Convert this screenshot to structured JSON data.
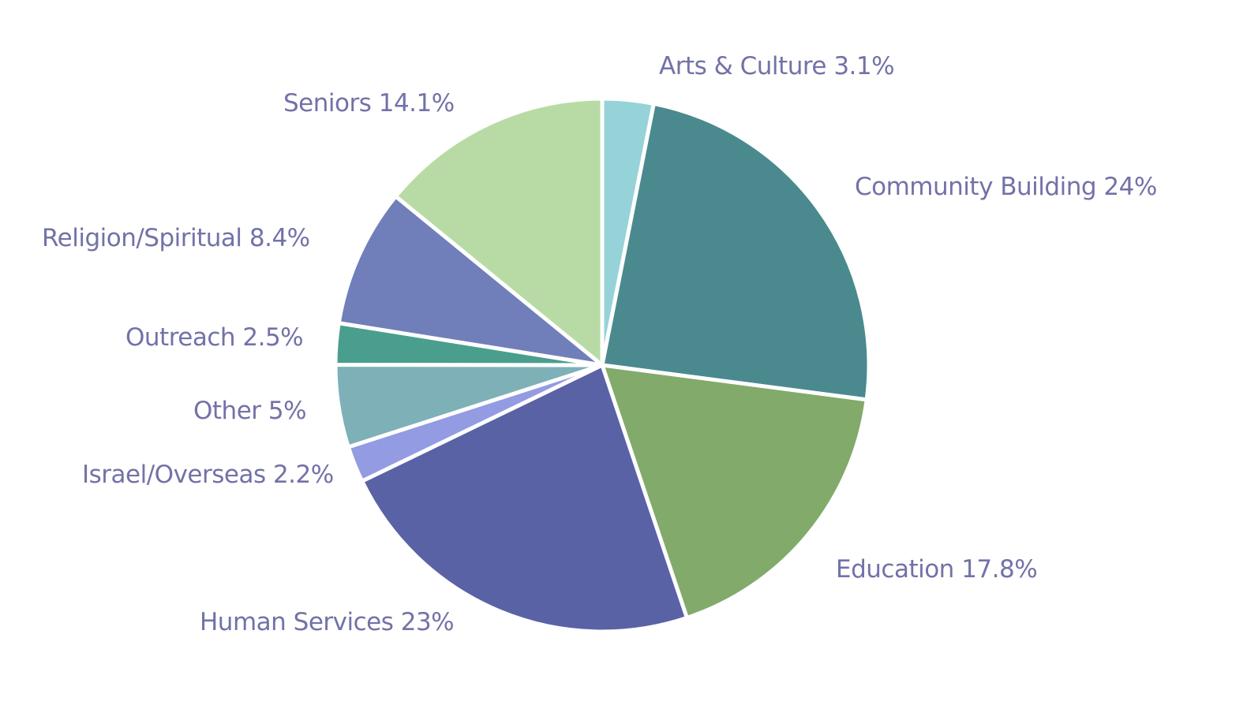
{
  "chart_data": {
    "type": "pie",
    "start": "12 o'clock",
    "direction": "clockwise",
    "slices": [
      {
        "label": "Arts & Culture",
        "value": 3.1,
        "text": "Arts & Culture 3.1%",
        "color": "#96d3d8"
      },
      {
        "label": "Community Building",
        "value": 24,
        "text": "Community Building 24%",
        "color": "#4a8a8e"
      },
      {
        "label": "Education",
        "value": 17.8,
        "text": "Education 17.8%",
        "color": "#82aa6b"
      },
      {
        "label": "Human Services",
        "value": 23,
        "text": "Human Services 23%",
        "color": "#5a62a6"
      },
      {
        "label": "Israel/Overseas",
        "value": 2.2,
        "text": "Israel/Overseas 2.2%",
        "color": "#939be3"
      },
      {
        "label": "Other",
        "value": 5,
        "text": "Other 5%",
        "color": "#7eb0b8"
      },
      {
        "label": "Outreach",
        "value": 2.5,
        "text": "Outreach 2.5%",
        "color": "#4a9e8e"
      },
      {
        "label": "Religion/Spiritual",
        "value": 8.4,
        "text": "Religion/Spiritual 8.4%",
        "color": "#707fba"
      },
      {
        "label": "Seniors",
        "value": 14.1,
        "text": "Seniors 14.1%",
        "color": "#b8dba6"
      }
    ],
    "label_color": "#7272a8",
    "legend": "none"
  }
}
